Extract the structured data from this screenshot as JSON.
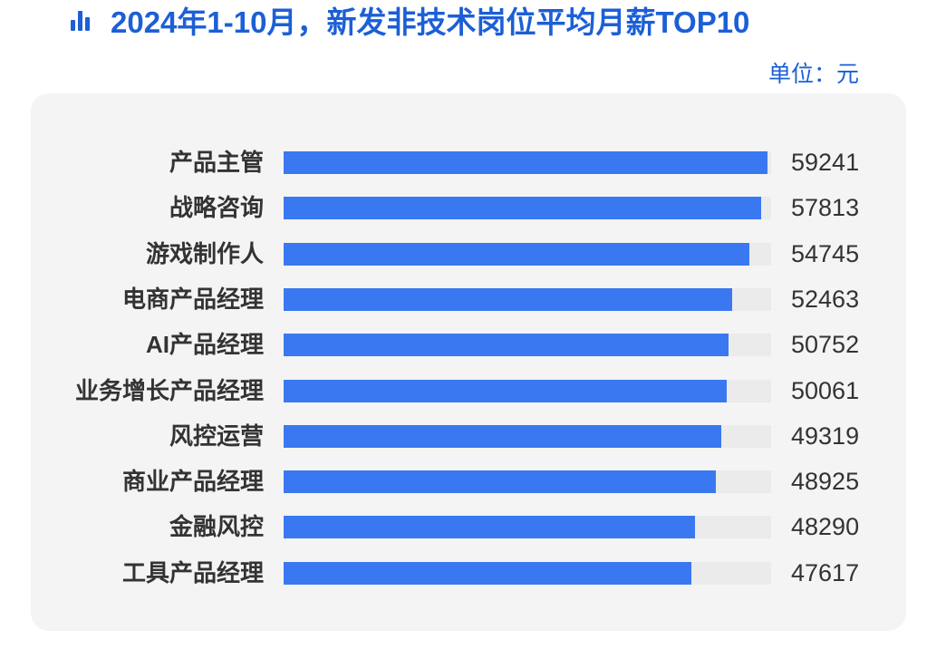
{
  "header": {
    "icon": "bar-chart-icon",
    "title": "2024年1-10月，新发非技术岗位平均月薪TOP10",
    "unit": "单位：元"
  },
  "colors": {
    "title": "#1c5fd6",
    "bar": "#3a78f2",
    "track": "#ebebeb",
    "panel": "#f4f4f4",
    "text": "#333333"
  },
  "chart_data": {
    "type": "bar",
    "orientation": "horizontal",
    "title": "2024年1-10月，新发非技术岗位平均月薪TOP10",
    "unit": "元",
    "xlabel": "",
    "ylabel": "",
    "xlim": [
      0,
      60000
    ],
    "grid": false,
    "legend": null,
    "categories": [
      "产品主管",
      "战略咨询",
      "游戏制作人",
      "电商产品经理",
      "AI产品经理",
      "业务增长产品经理",
      "风控运营",
      "商业产品经理",
      "金融风控",
      "工具产品经理"
    ],
    "values": [
      59241,
      57813,
      54745,
      52463,
      50752,
      50061,
      49319,
      48925,
      48290,
      47617
    ],
    "bar_fill_pct": [
      99.2,
      98.0,
      95.6,
      92.0,
      91.3,
      90.9,
      89.7,
      88.6,
      84.4,
      83.7
    ]
  }
}
